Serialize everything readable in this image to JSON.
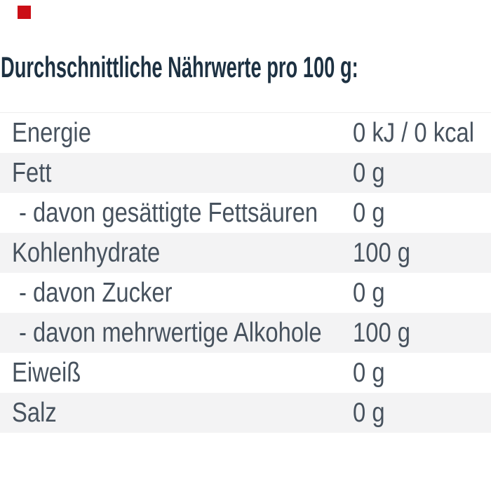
{
  "brand": {
    "logo_color": "#cb0e16"
  },
  "title": {
    "text": "Durchschnittliche Nährwerte pro 100 g:"
  },
  "nutrition_table": {
    "rows": [
      {
        "label": "Energie",
        "value": "0 kJ / 0 kcal",
        "indent": false,
        "shaded": false
      },
      {
        "label": "Fett",
        "value": "0 g",
        "indent": false,
        "shaded": true
      },
      {
        "label": "- davon gesättigte Fettsäuren",
        "value": "0 g",
        "indent": true,
        "shaded": false
      },
      {
        "label": "Kohlenhydrate",
        "value": "100 g",
        "indent": false,
        "shaded": true
      },
      {
        "label": "- davon Zucker",
        "value": "0 g",
        "indent": true,
        "shaded": false
      },
      {
        "label": "- davon mehrwertige Alkohole",
        "value": "100 g",
        "indent": true,
        "shaded": true
      },
      {
        "label": "Eiweiß",
        "value": "0 g",
        "indent": false,
        "shaded": false
      },
      {
        "label": "Salz",
        "value": "0 g",
        "indent": false,
        "shaded": true
      }
    ],
    "colors": {
      "title_text": "#1d3142",
      "row_text": "#47525e",
      "zebra": "#f3f3f4",
      "row_border": "#ededed"
    }
  }
}
